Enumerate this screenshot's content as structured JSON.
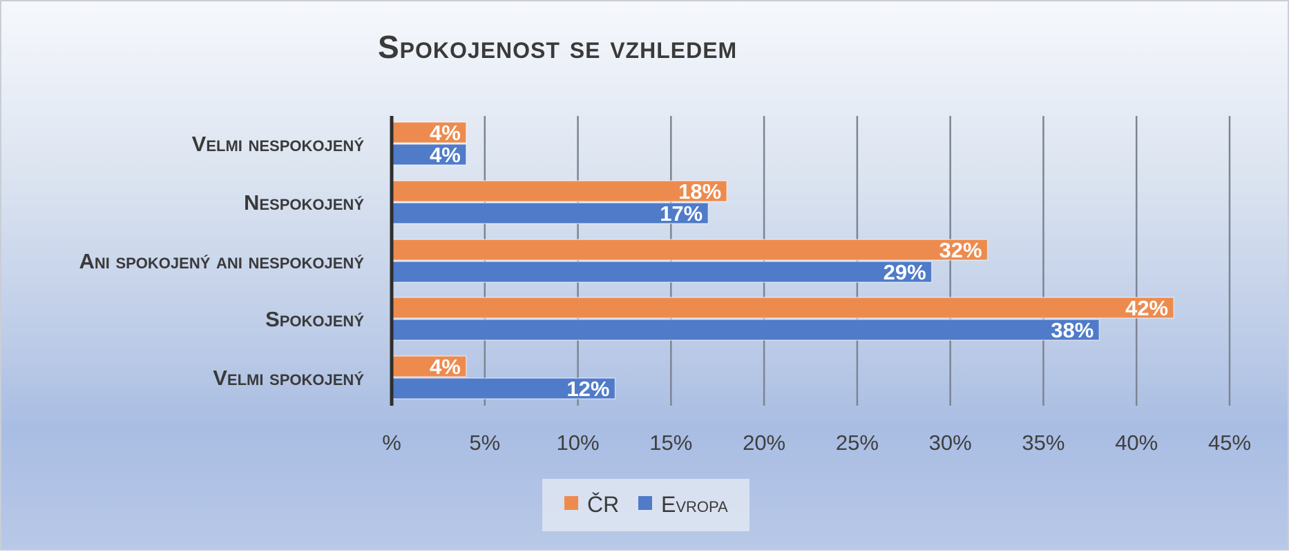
{
  "chart_data": {
    "type": "bar",
    "orientation": "horizontal",
    "title": "Spokojenost se vzhledem",
    "categories": [
      "Velmi nespokojený",
      "Nespokojený",
      "Ani spokojený ani nespokojený",
      "Spokojený",
      "Velmi spokojený"
    ],
    "series": [
      {
        "name": "ČR",
        "color": "#ed8b4f",
        "values": [
          4,
          18,
          32,
          42,
          4
        ],
        "labels": [
          "4%",
          "18%",
          "32%",
          "42%",
          "4%"
        ]
      },
      {
        "name": "Evropa",
        "color": "#4f7bc9",
        "values": [
          4,
          17,
          29,
          38,
          12
        ],
        "labels": [
          "4%",
          "17%",
          "29%",
          "38%",
          "12%"
        ]
      }
    ],
    "xlim": [
      0,
      45
    ],
    "x_ticks": [
      0,
      5,
      10,
      15,
      20,
      25,
      30,
      35,
      40,
      45
    ],
    "x_tick_labels": [
      "%",
      "5%",
      "10%",
      "15%",
      "20%",
      "25%",
      "30%",
      "35%",
      "40%",
      "45%"
    ],
    "grid": "vertical",
    "legend_position": "bottom"
  }
}
